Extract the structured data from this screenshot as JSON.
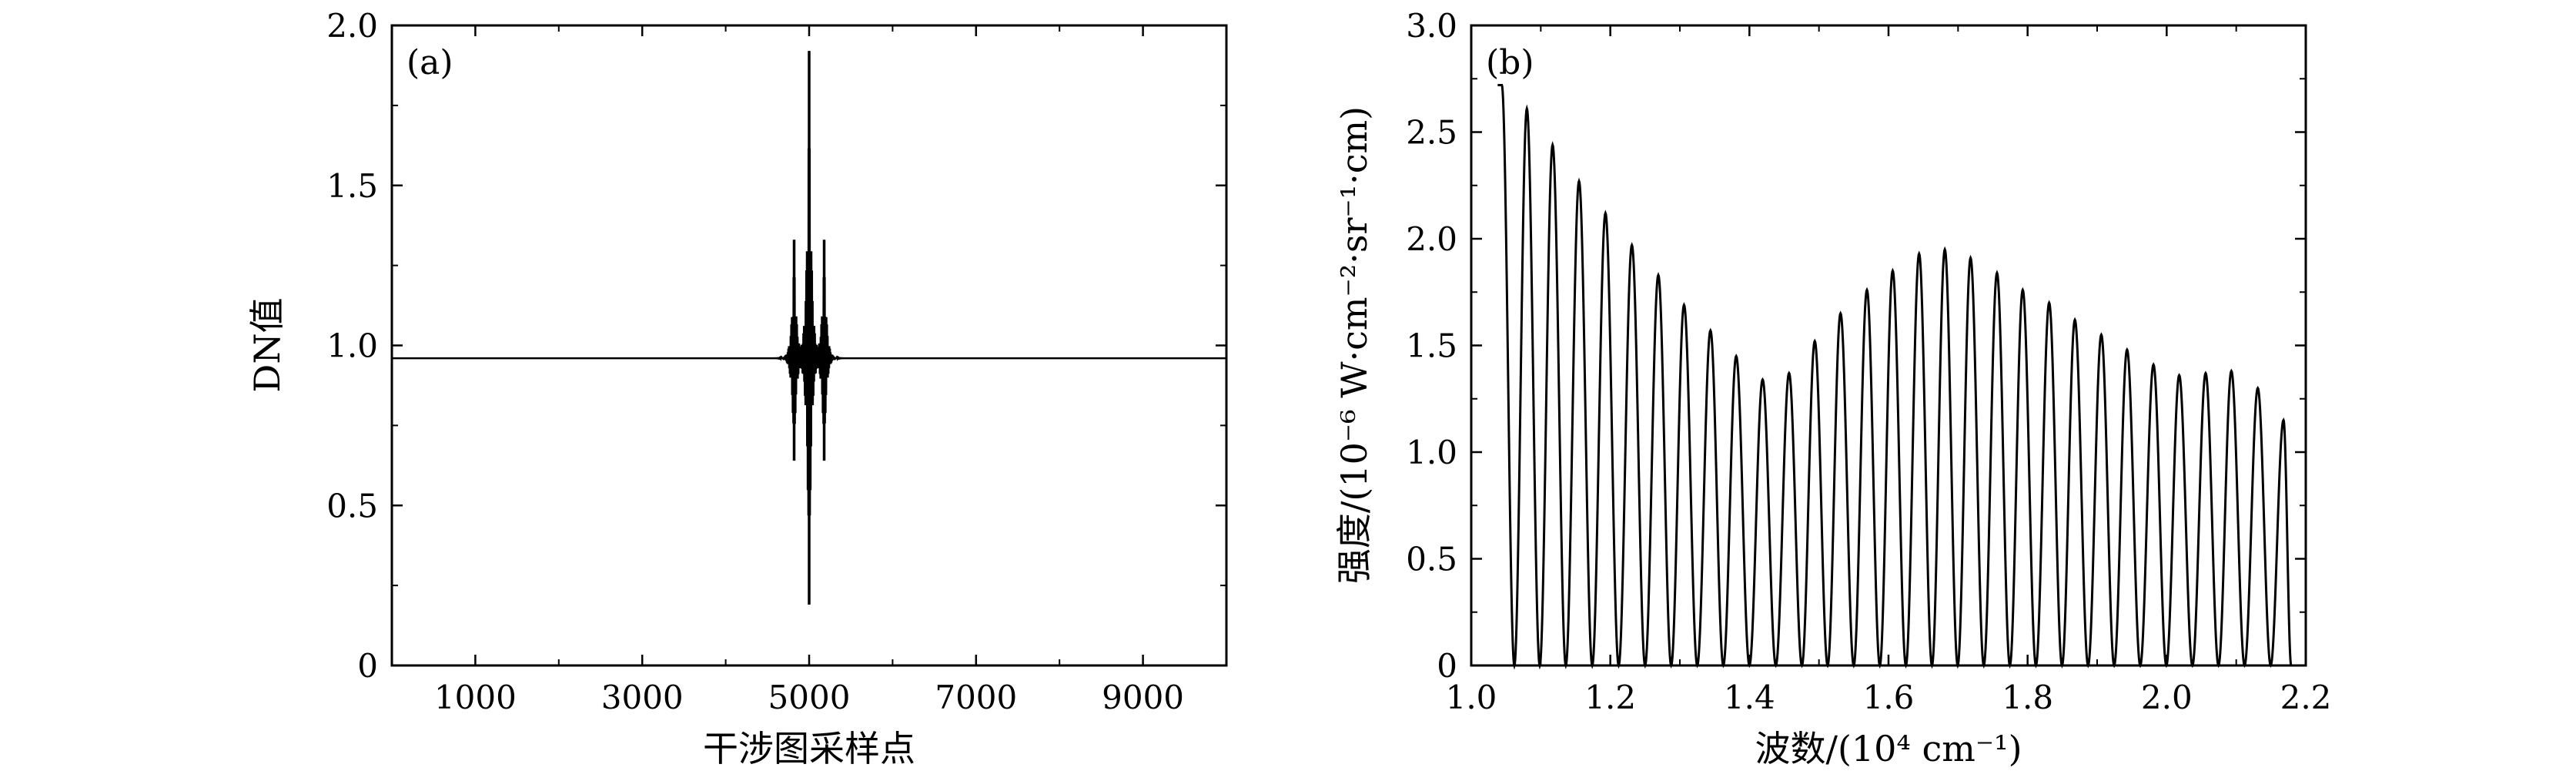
{
  "chart_data": [
    {
      "type": "line",
      "panel_label": "(a)",
      "xlabel": "干涉图采样点",
      "ylabel": "DN值",
      "xlim": [
        0,
        10000
      ],
      "ylim": [
        0,
        2.0
      ],
      "x_ticks": [
        1000,
        3000,
        5000,
        7000,
        9000
      ],
      "x_tick_labels": [
        "1000",
        "3000",
        "5000",
        "7000",
        "9000"
      ],
      "y_ticks": [
        0,
        0.5,
        1.0,
        1.5,
        2.0
      ],
      "y_tick_labels": [
        "0",
        "0.5",
        "1.0",
        "1.5",
        "2.0"
      ],
      "grid": false,
      "series": [
        {
          "baseline": 0.96,
          "bursts": [
            {
              "center": 4820,
              "max": 1.33,
              "min": 0.64
            },
            {
              "center": 5000,
              "max": 1.92,
              "min": 0.19
            },
            {
              "center": 5180,
              "max": 1.33,
              "min": 0.64
            }
          ]
        }
      ]
    },
    {
      "type": "line",
      "panel_label": "(b)",
      "xlabel": "波数/(10⁴ cm⁻¹)",
      "ylabel": "强度/(10⁻⁶ W·cm⁻²·sr⁻¹·cm)",
      "xlim": [
        1.0,
        2.2
      ],
      "ylim": [
        0,
        3.0
      ],
      "x_ticks": [
        1.0,
        1.2,
        1.4,
        1.6,
        1.8,
        2.0,
        2.2
      ],
      "x_tick_labels": [
        "1.0",
        "1.2",
        "1.4",
        "1.6",
        "1.8",
        "2.0",
        "2.2"
      ],
      "y_ticks": [
        0,
        0.5,
        1.0,
        1.5,
        2.0,
        2.5,
        3.0
      ],
      "y_tick_labels": [
        "0",
        "0.5",
        "1.0",
        "1.5",
        "2.0",
        "2.5",
        "3.0"
      ],
      "grid": false,
      "series": [
        {
          "peaks": [
            {
              "x": 1.044,
              "y": 2.72
            },
            {
              "x": 1.08,
              "y": 2.61
            },
            {
              "x": 1.117,
              "y": 2.44
            },
            {
              "x": 1.155,
              "y": 2.27
            },
            {
              "x": 1.193,
              "y": 2.12
            },
            {
              "x": 1.231,
              "y": 1.97
            },
            {
              "x": 1.269,
              "y": 1.83
            },
            {
              "x": 1.306,
              "y": 1.69
            },
            {
              "x": 1.344,
              "y": 1.57
            },
            {
              "x": 1.381,
              "y": 1.45
            },
            {
              "x": 1.419,
              "y": 1.34
            },
            {
              "x": 1.457,
              "y": 1.37
            },
            {
              "x": 1.494,
              "y": 1.52
            },
            {
              "x": 1.531,
              "y": 1.65
            },
            {
              "x": 1.569,
              "y": 1.76
            },
            {
              "x": 1.606,
              "y": 1.85
            },
            {
              "x": 1.644,
              "y": 1.93
            },
            {
              "x": 1.681,
              "y": 1.95
            },
            {
              "x": 1.718,
              "y": 1.91
            },
            {
              "x": 1.756,
              "y": 1.84
            },
            {
              "x": 1.793,
              "y": 1.76
            },
            {
              "x": 1.831,
              "y": 1.7
            },
            {
              "x": 1.868,
              "y": 1.62
            },
            {
              "x": 1.906,
              "y": 1.55
            },
            {
              "x": 1.943,
              "y": 1.48
            },
            {
              "x": 1.981,
              "y": 1.41
            },
            {
              "x": 2.018,
              "y": 1.36
            },
            {
              "x": 2.056,
              "y": 1.37
            },
            {
              "x": 2.093,
              "y": 1.38
            },
            {
              "x": 2.131,
              "y": 1.3
            },
            {
              "x": 2.168,
              "y": 1.15
            }
          ],
          "x_end": 2.19
        }
      ]
    }
  ]
}
